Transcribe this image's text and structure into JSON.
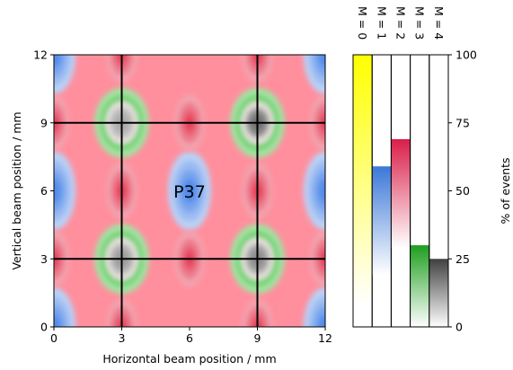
{
  "chart_data": [
    {
      "type": "heatmap",
      "title": "",
      "xlabel": "Horizontal beam position / mm",
      "ylabel": "Vertical beam position / mm",
      "xlim": [
        0,
        12
      ],
      "ylim": [
        0,
        12
      ],
      "x_ticks": [
        "0",
        "3",
        "6",
        "9",
        "12"
      ],
      "y_ticks": [
        "0",
        "3",
        "6",
        "9",
        "12"
      ],
      "grid_lines_mm": [
        3,
        9
      ],
      "annotation": {
        "text": "P37",
        "x": 6,
        "y": 6
      },
      "features": [
        {
          "category": "M = 0",
          "x": 6,
          "y": 6,
          "color": "#4a86e8"
        },
        {
          "category": "M = 0",
          "x": 0,
          "y": 6,
          "color": "#4a86e8"
        },
        {
          "category": "M = 0",
          "x": 12,
          "y": 6,
          "color": "#4a86e8"
        },
        {
          "category": "M = 0",
          "x": 0,
          "y": 0,
          "color": "#4a86e8"
        },
        {
          "category": "M = 0",
          "x": 12,
          "y": 0,
          "color": "#4a86e8"
        },
        {
          "category": "M = 0",
          "x": 0,
          "y": 12,
          "color": "#4a86e8"
        },
        {
          "category": "M = 0",
          "x": 12,
          "y": 12,
          "color": "#4a86e8"
        },
        {
          "category": "M = 1",
          "x": 3,
          "y": 9,
          "color": "#2dbf2d"
        },
        {
          "category": "M = 1",
          "x": 3,
          "y": 3,
          "color": "#2dbf2d"
        },
        {
          "category": "M = 1",
          "x": 9,
          "y": 9,
          "color": "#2dbf2d"
        },
        {
          "category": "M = 1",
          "x": 9,
          "y": 3,
          "color": "#2dbf2d"
        },
        {
          "category": "M = 4",
          "x": 9,
          "y": 9,
          "color": "#707070"
        },
        {
          "category": "M = 4",
          "x": 9,
          "y": 3,
          "color": "#8a8a8a"
        },
        {
          "category": "M = 4",
          "x": 3,
          "y": 3,
          "color": "#9a9a9a"
        },
        {
          "category": "M = 4",
          "x": 3,
          "y": 9,
          "color": "#a8a8a8"
        },
        {
          "category": "M = 2",
          "x": 3,
          "y": 6,
          "color": "#e3324e"
        },
        {
          "category": "M = 2",
          "x": 9,
          "y": 6,
          "color": "#e3324e"
        },
        {
          "category": "M = 2",
          "x": 3,
          "y": 12,
          "color": "#e3324e"
        },
        {
          "category": "M = 2",
          "x": 9,
          "y": 12,
          "color": "#e3324e"
        },
        {
          "category": "M = 2",
          "x": 3,
          "y": 0,
          "color": "#e3324e"
        },
        {
          "category": "M = 2",
          "x": 9,
          "y": 0,
          "color": "#e3324e"
        },
        {
          "category": "M = 2",
          "x": 6,
          "y": 9,
          "color": "#e3324e"
        },
        {
          "category": "M = 2",
          "x": 6,
          "y": 3,
          "color": "#e3324e"
        },
        {
          "category": "M = 2",
          "x": 0,
          "y": 3,
          "color": "#e3324e"
        },
        {
          "category": "M = 2",
          "x": 0,
          "y": 9,
          "color": "#e3324e"
        },
        {
          "category": "M = 2",
          "x": 12,
          "y": 3,
          "color": "#e3324e"
        },
        {
          "category": "M = 2",
          "x": 12,
          "y": 9,
          "color": "#e3324e"
        }
      ],
      "background_color": "#ff8f9d"
    },
    {
      "type": "bar",
      "title": "",
      "categories": [
        "M = 0",
        "M = 1",
        "M = 2",
        "M = 3",
        "M = 4"
      ],
      "values": [
        100,
        59,
        69,
        30,
        25
      ],
      "colors": [
        "#ffff00",
        "#3c78d8",
        "#d91e48",
        "#1e9e1e",
        "#404040"
      ],
      "ylabel": "% of events",
      "ylim": [
        0,
        100
      ],
      "y_ticks": [
        "0",
        "25",
        "50",
        "75",
        "100"
      ],
      "gradient": "solid at top fading to white at bottom"
    }
  ]
}
